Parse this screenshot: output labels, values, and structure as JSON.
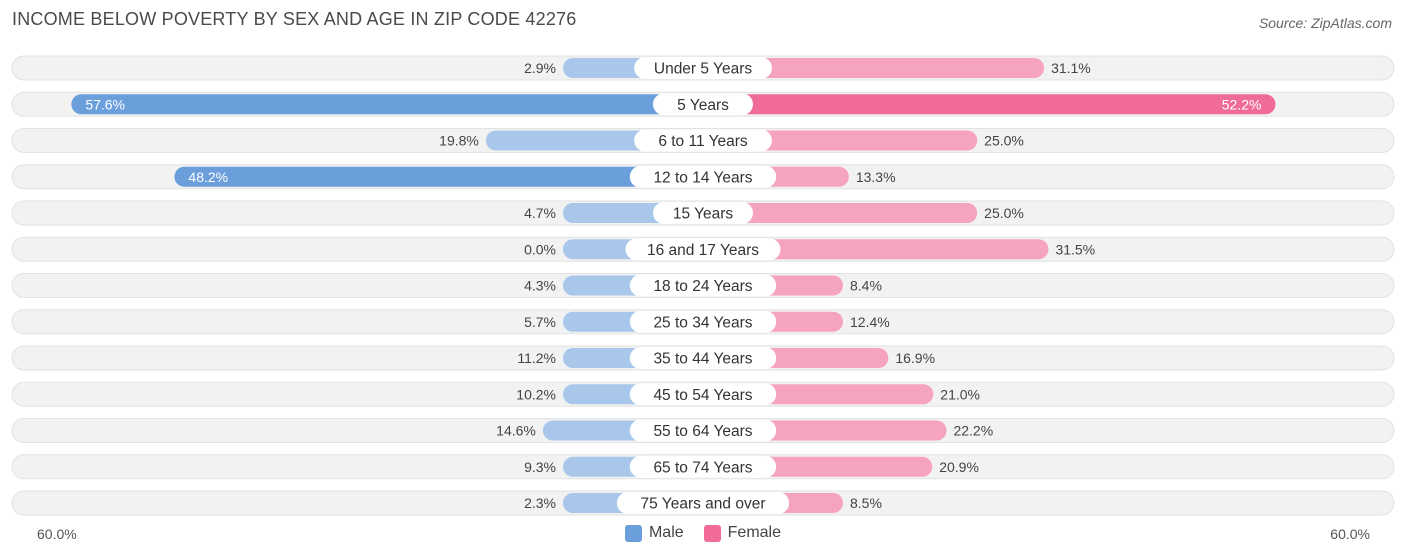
{
  "header": {
    "title": "INCOME BELOW POVERTY BY SEX AND AGE IN ZIP CODE 42276",
    "source": "Source: ZipAtlas.com"
  },
  "colors": {
    "male_strong": "#6a9fdc",
    "male_light": "#a9c7ea",
    "female_strong": "#f06b95",
    "female_light": "#f6a3bd",
    "track": "#eeeeee"
  },
  "axis": {
    "left_label": "60.0%",
    "right_label": "60.0%"
  },
  "legend": {
    "male": "Male",
    "female": "Female"
  },
  "chart_data": {
    "type": "bar",
    "orientation": "horizontal-diverging",
    "xlim": [
      -60,
      60
    ],
    "categories": [
      "Under 5 Years",
      "5 Years",
      "6 to 11 Years",
      "12 to 14 Years",
      "15 Years",
      "16 and 17 Years",
      "18 to 24 Years",
      "25 to 34 Years",
      "35 to 44 Years",
      "45 to 54 Years",
      "55 to 64 Years",
      "65 to 74 Years",
      "75 Years and over"
    ],
    "series": [
      {
        "name": "Male",
        "values": [
          2.9,
          57.6,
          19.8,
          48.2,
          4.7,
          0.0,
          4.3,
          5.7,
          11.2,
          10.2,
          14.6,
          9.3,
          2.3
        ],
        "labels": [
          "2.9%",
          "57.6%",
          "19.8%",
          "48.2%",
          "4.7%",
          "0.0%",
          "4.3%",
          "5.7%",
          "11.2%",
          "10.2%",
          "14.6%",
          "9.3%",
          "2.3%"
        ]
      },
      {
        "name": "Female",
        "values": [
          31.1,
          52.2,
          25.0,
          13.3,
          25.0,
          31.5,
          8.4,
          12.4,
          16.9,
          21.0,
          22.2,
          20.9,
          8.5
        ],
        "labels": [
          "31.1%",
          "52.2%",
          "25.0%",
          "13.3%",
          "25.0%",
          "31.5%",
          "8.4%",
          "12.4%",
          "16.9%",
          "21.0%",
          "22.2%",
          "20.9%",
          "8.5%"
        ]
      }
    ],
    "legend_position": "bottom-center"
  }
}
